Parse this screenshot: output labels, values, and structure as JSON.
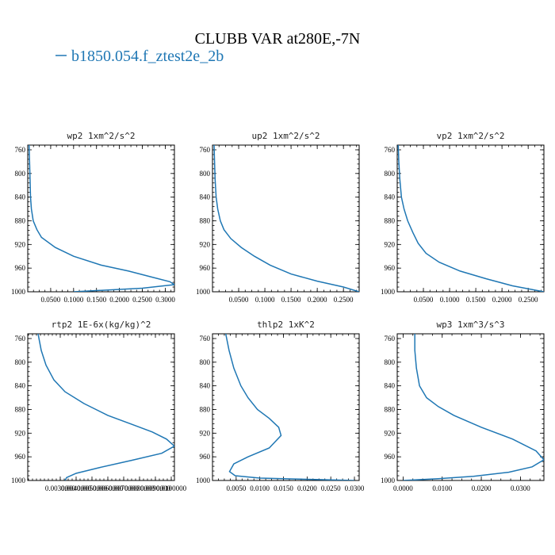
{
  "title": "CLUBB VAR at280E,-7N",
  "legend": {
    "entries": [
      {
        "label": "b1850.054.f_ztest2e_2b",
        "color": "#1f77b4"
      }
    ]
  },
  "chart_data": [
    {
      "type": "line",
      "title": "wp2  1xm^2/s^2",
      "xlim": [
        0,
        0.32
      ],
      "ylim": [
        1000,
        752
      ],
      "x_ticks": [
        0.05,
        0.1,
        0.15,
        0.2,
        0.25,
        0.3
      ],
      "x_tick_labels": [
        "0.0500",
        "0.1000",
        "0.1500",
        "0.2000",
        "0.2500",
        "0.3000"
      ],
      "y_ticks": [
        760,
        800,
        840,
        880,
        920,
        960,
        1000
      ],
      "y_tick_labels": [
        "760",
        "800",
        "840",
        "880",
        "920",
        "960",
        "1000"
      ],
      "series": [
        {
          "x": [
            0.003,
            0.004,
            0.005,
            0.006,
            0.008,
            0.012,
            0.02,
            0.03,
            0.06,
            0.1,
            0.16,
            0.22,
            0.27,
            0.31,
            0.32,
            0.25,
            0.1
          ],
          "y": [
            752,
            780,
            810,
            840,
            860,
            880,
            895,
            908,
            925,
            940,
            955,
            965,
            975,
            983,
            988,
            994,
            1000
          ]
        }
      ]
    },
    {
      "type": "line",
      "title": "up2  1xm^2/s^2",
      "xlim": [
        0,
        0.28
      ],
      "ylim": [
        1000,
        752
      ],
      "x_ticks": [
        0.05,
        0.1,
        0.15,
        0.2,
        0.25
      ],
      "x_tick_labels": [
        "0.0500",
        "0.1000",
        "0.1500",
        "0.2000",
        "0.2500"
      ],
      "y_ticks": [
        760,
        800,
        840,
        880,
        920,
        960,
        1000
      ],
      "y_tick_labels": [
        "760",
        "800",
        "840",
        "880",
        "920",
        "960",
        "1000"
      ],
      "series": [
        {
          "x": [
            0.003,
            0.004,
            0.005,
            0.007,
            0.01,
            0.015,
            0.022,
            0.035,
            0.055,
            0.08,
            0.11,
            0.15,
            0.2,
            0.25,
            0.28
          ],
          "y": [
            752,
            780,
            810,
            840,
            860,
            880,
            895,
            910,
            925,
            940,
            955,
            970,
            982,
            992,
            1000
          ]
        }
      ]
    },
    {
      "type": "line",
      "title": "vp2  1xm^2/s^2",
      "xlim": [
        0,
        0.28
      ],
      "ylim": [
        1000,
        752
      ],
      "x_ticks": [
        0.05,
        0.1,
        0.15,
        0.2,
        0.25
      ],
      "x_tick_labels": [
        "0.0500",
        "0.1000",
        "0.1500",
        "0.2000",
        "0.2500"
      ],
      "y_ticks": [
        760,
        800,
        840,
        880,
        920,
        960,
        1000
      ],
      "y_tick_labels": [
        "760",
        "800",
        "840",
        "880",
        "920",
        "960",
        "1000"
      ],
      "series": [
        {
          "x": [
            0.002,
            0.003,
            0.005,
            0.008,
            0.013,
            0.02,
            0.03,
            0.04,
            0.055,
            0.08,
            0.12,
            0.17,
            0.22,
            0.28
          ],
          "y": [
            752,
            780,
            810,
            840,
            860,
            880,
            900,
            918,
            935,
            950,
            965,
            978,
            990,
            1000
          ]
        }
      ]
    },
    {
      "type": "line",
      "title": "rtp2  1E-6x(kg/kg)^2",
      "xlim": [
        0.00095,
        0.0102
      ],
      "ylim": [
        1000,
        752
      ],
      "x_ticks": [
        0.003,
        0.004,
        0.005,
        0.006,
        0.007,
        0.008,
        0.009,
        0.01
      ],
      "x_tick_labels": [
        "0.0030000",
        "0.0040000",
        "0.0050000",
        "0.0060000",
        "0.0070000",
        "0.0080000",
        "0.0090000",
        "0.0100000"
      ],
      "y_ticks": [
        760,
        800,
        840,
        880,
        920,
        960,
        1000
      ],
      "y_tick_labels": [
        "760",
        "800",
        "840",
        "880",
        "920",
        "960",
        "1000"
      ],
      "series": [
        {
          "x": [
            0.0016,
            0.0018,
            0.0021,
            0.0026,
            0.0033,
            0.0045,
            0.006,
            0.0075,
            0.0088,
            0.0097,
            0.0102,
            0.0094,
            0.0075,
            0.0055,
            0.004,
            0.0034,
            0.0033
          ],
          "y": [
            752,
            780,
            805,
            830,
            850,
            870,
            890,
            905,
            918,
            930,
            942,
            954,
            966,
            978,
            988,
            995,
            1000
          ]
        }
      ]
    },
    {
      "type": "line",
      "title": "thlp2  1xK^2",
      "xlim": [
        0,
        0.031
      ],
      "ylim": [
        1000,
        752
      ],
      "x_ticks": [
        0.005,
        0.01,
        0.015,
        0.02,
        0.025,
        0.03
      ],
      "x_tick_labels": [
        "0.0050",
        "0.0100",
        "0.0150",
        "0.0200",
        "0.0250",
        "0.0300"
      ],
      "y_ticks": [
        760,
        800,
        840,
        880,
        920,
        960,
        1000
      ],
      "y_tick_labels": [
        "760",
        "800",
        "840",
        "880",
        "920",
        "960",
        "1000"
      ],
      "series": [
        {
          "x": [
            0.0028,
            0.0035,
            0.0045,
            0.006,
            0.0075,
            0.0095,
            0.012,
            0.014,
            0.0145,
            0.012,
            0.0075,
            0.0045,
            0.0036,
            0.0048,
            0.01,
            0.02,
            0.03
          ],
          "y": [
            752,
            780,
            810,
            840,
            860,
            880,
            895,
            910,
            924,
            945,
            960,
            972,
            985,
            992,
            996,
            998,
            1000
          ]
        }
      ]
    },
    {
      "type": "line",
      "title": "wp3  1xm^3/s^3",
      "xlim": [
        -0.0015,
        0.036
      ],
      "ylim": [
        1000,
        752
      ],
      "x_ticks": [
        0.0,
        0.01,
        0.02,
        0.03
      ],
      "x_tick_labels": [
        "0.0000",
        "0.0100",
        "0.0200",
        "0.0300"
      ],
      "y_ticks": [
        760,
        800,
        840,
        880,
        920,
        960,
        1000
      ],
      "y_tick_labels": [
        "760",
        "800",
        "840",
        "880",
        "920",
        "960",
        "1000"
      ],
      "series": [
        {
          "x": [
            0.003,
            0.003,
            0.0034,
            0.0042,
            0.006,
            0.009,
            0.013,
            0.02,
            0.028,
            0.034,
            0.036,
            0.033,
            0.027,
            0.018,
            0.009,
            0.003,
            0.0
          ],
          "y": [
            752,
            780,
            810,
            840,
            860,
            875,
            890,
            910,
            930,
            950,
            965,
            977,
            986,
            993,
            997,
            999,
            1000
          ]
        }
      ]
    }
  ]
}
